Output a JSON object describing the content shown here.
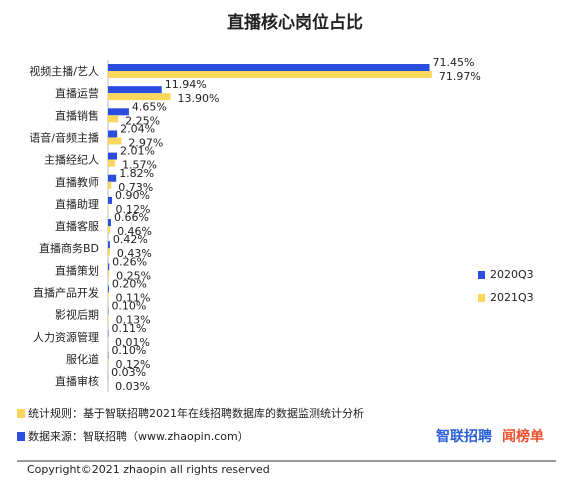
{
  "chart_data": {
    "type": "hbar",
    "title": "直播核心岗位占比",
    "categories": [
      "视频主播/艺人",
      "直播运营",
      "直播销售",
      "语音/音频主播",
      "主播经纪人",
      "直播教师",
      "直播助理",
      "直播客服",
      "直播商务BD",
      "直播策划",
      "直播产品开发",
      "影视后期",
      "人力资源管理",
      "服化道",
      "直播审核"
    ],
    "series": [
      {
        "name": "2020Q3",
        "color": "#2b4ee0",
        "values": [
          71.45,
          11.94,
          4.65,
          2.04,
          2.01,
          1.82,
          0.9,
          0.66,
          0.42,
          0.26,
          0.2,
          0.1,
          0.11,
          0.1,
          0.03
        ],
        "value_labels": [
          "71.45%",
          "11.94%",
          "4.65%",
          "2.04%",
          "2.01%",
          "1.82%",
          "0.90%",
          "0.66%",
          "0.42%",
          "0.26%",
          "0.20%",
          "0.10%",
          "0.11%",
          "0.10%",
          "0.03%"
        ]
      },
      {
        "name": "2021Q3",
        "color": "#fad75c",
        "values": [
          71.97,
          13.9,
          2.25,
          2.97,
          1.57,
          0.73,
          0.12,
          0.46,
          0.43,
          0.25,
          0.11,
          0.13,
          0.01,
          0.12,
          0.03
        ],
        "value_labels": [
          "71.97%",
          "13.90%",
          "2.25%",
          "2.97%",
          "1.57%",
          "0.73%",
          "0.12%",
          "0.46%",
          "0.43%",
          "0.25%",
          "0.11%",
          "0.13%",
          "0.01%",
          "0.12%",
          "0.03%"
        ]
      }
    ],
    "xlim": [
      0,
      80
    ],
    "legend": "right",
    "annotations": [
      "统计规则：基于智联招聘2021年在线招聘数据库的数据监测统计分析",
      "数据来源：智联招聘（www.zhaopin.com）"
    ],
    "logos": [
      "智联招聘",
      "闻榜单"
    ],
    "copyright": "Copyright©2021 zhaopin all rights reserved"
  }
}
